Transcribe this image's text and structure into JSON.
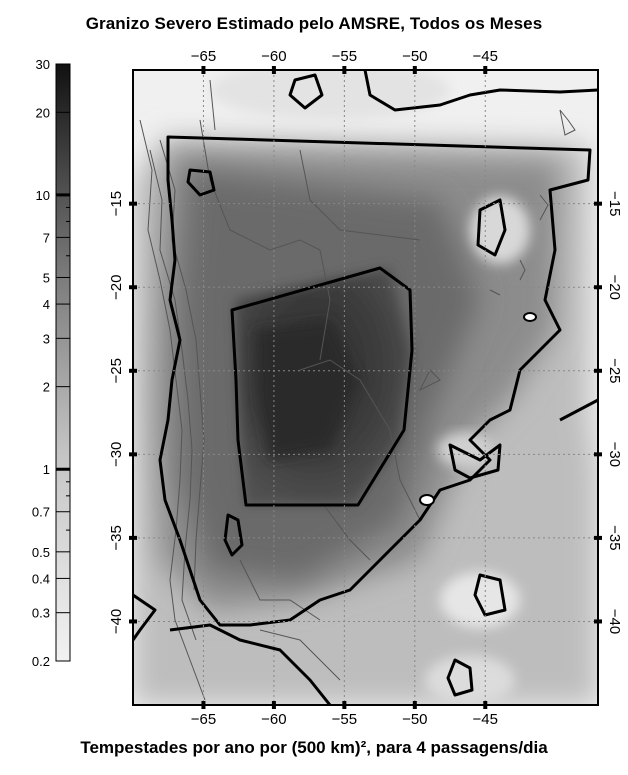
{
  "title": "Granizo Severo Estimado pelo AMSRE, Todos os Meses",
  "caption": "Tempestades por ano por (500 km)², para 4 passagens/dia",
  "map": {
    "lon_range": [
      -70,
      -37
    ],
    "lat_range": [
      -45,
      -7
    ],
    "lon_ticks": [
      {
        "value": -65,
        "label": "−65"
      },
      {
        "value": -60,
        "label": "−60"
      },
      {
        "value": -55,
        "label": "−55"
      },
      {
        "value": -50,
        "label": "−50"
      },
      {
        "value": -45,
        "label": "−45"
      }
    ],
    "lat_ticks": [
      {
        "value": -15,
        "label": "−15"
      },
      {
        "value": -20,
        "label": "−20"
      },
      {
        "value": -25,
        "label": "−25"
      },
      {
        "value": -30,
        "label": "−30"
      },
      {
        "value": -35,
        "label": "−35"
      },
      {
        "value": -40,
        "label": "−40"
      }
    ],
    "gridlines": true,
    "scale": "log",
    "colors": {
      "low": "#e8e8e8",
      "mid": "#8a8a8a",
      "high": "#262626",
      "contour": "#000000",
      "coast": "#555555"
    }
  },
  "colorbar": {
    "scale": "log",
    "range": [
      0.2,
      30
    ],
    "ticks": [
      {
        "value": 30,
        "label": "30"
      },
      {
        "value": 20,
        "label": "20"
      },
      {
        "value": 10,
        "label": "10"
      },
      {
        "value": 7,
        "label": "7"
      },
      {
        "value": 5,
        "label": "5"
      },
      {
        "value": 4,
        "label": "4"
      },
      {
        "value": 3,
        "label": "3"
      },
      {
        "value": 2,
        "label": "2"
      },
      {
        "value": 1,
        "label": "1"
      },
      {
        "value": 0.7,
        "label": "0.7"
      },
      {
        "value": 0.5,
        "label": "0.5"
      },
      {
        "value": 0.4,
        "label": "0.4"
      },
      {
        "value": 0.3,
        "label": "0.3"
      },
      {
        "value": 0.2,
        "label": "0.2"
      }
    ]
  }
}
